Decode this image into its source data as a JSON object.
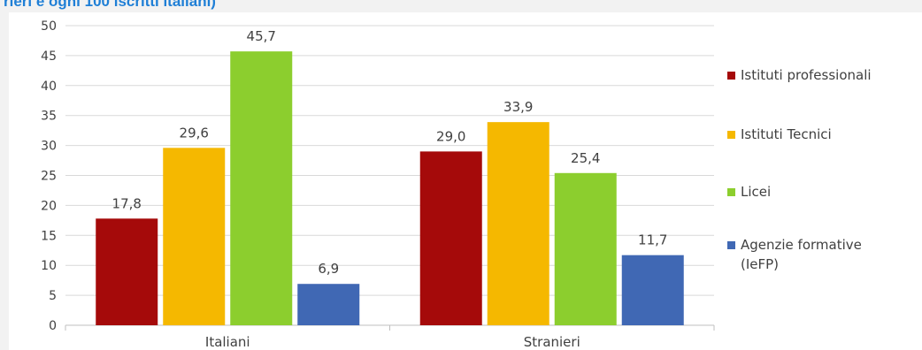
{
  "title": "rieri e ogni 100 iscritti italiani)",
  "chart_data": {
    "type": "bar",
    "categories": [
      "Italiani",
      "Stranieri"
    ],
    "series": [
      {
        "name": "Istituti professionali",
        "color": "#a50a0a",
        "values": [
          17.8,
          29.0
        ],
        "labels": [
          "17,8",
          "29,0"
        ]
      },
      {
        "name": "Istituti Tecnici",
        "color": "#f5b800",
        "values": [
          29.6,
          33.9
        ],
        "labels": [
          "29,6",
          "33,9"
        ]
      },
      {
        "name": "Licei",
        "color": "#8cce2e",
        "values": [
          45.7,
          25.4
        ],
        "labels": [
          "45,7",
          "25,4"
        ]
      },
      {
        "name": "Agenzie formative\n(IeFP)",
        "color": "#4068b4",
        "values": [
          6.9,
          11.7
        ],
        "labels": [
          "6,9",
          "11,7"
        ]
      }
    ],
    "ylim": [
      0,
      50
    ],
    "yticks": [
      0,
      5,
      10,
      15,
      20,
      25,
      30,
      35,
      40,
      45,
      50
    ],
    "grid": true,
    "legend": "right"
  }
}
